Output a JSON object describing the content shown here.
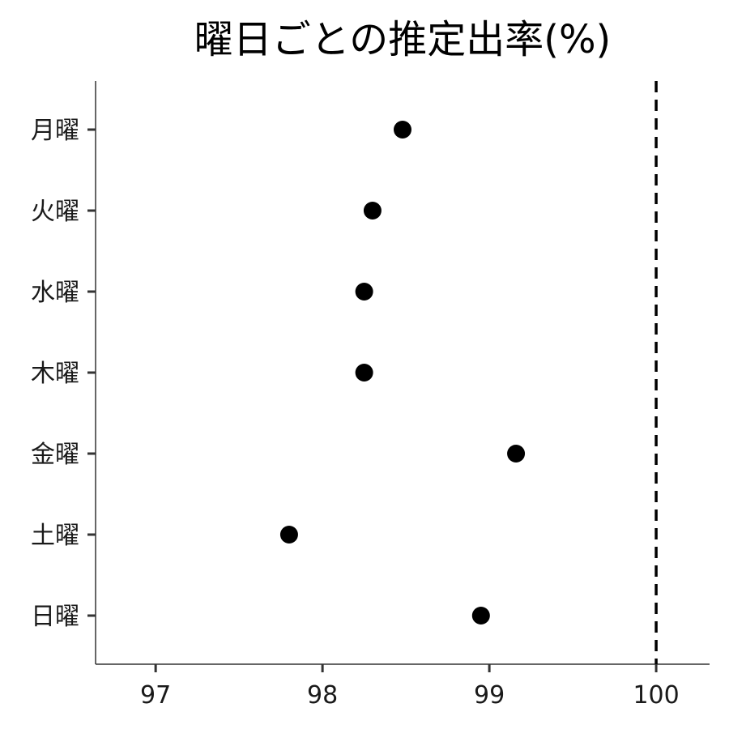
{
  "chart_data": {
    "type": "scatter",
    "title": "曜日ごとの推定出率(%)",
    "xlabel": "",
    "ylabel": "",
    "categories": [
      "月曜",
      "火曜",
      "水曜",
      "木曜",
      "金曜",
      "土曜",
      "日曜"
    ],
    "values": [
      98.48,
      98.3,
      98.25,
      98.25,
      99.16,
      97.8,
      98.95
    ],
    "xlim": [
      96.64,
      100.32
    ],
    "xticks": [
      97,
      98,
      99,
      100
    ],
    "reference_line": {
      "x": 100,
      "style": "dashed"
    },
    "grid": false,
    "legend": "none",
    "point_color": "#000000"
  }
}
